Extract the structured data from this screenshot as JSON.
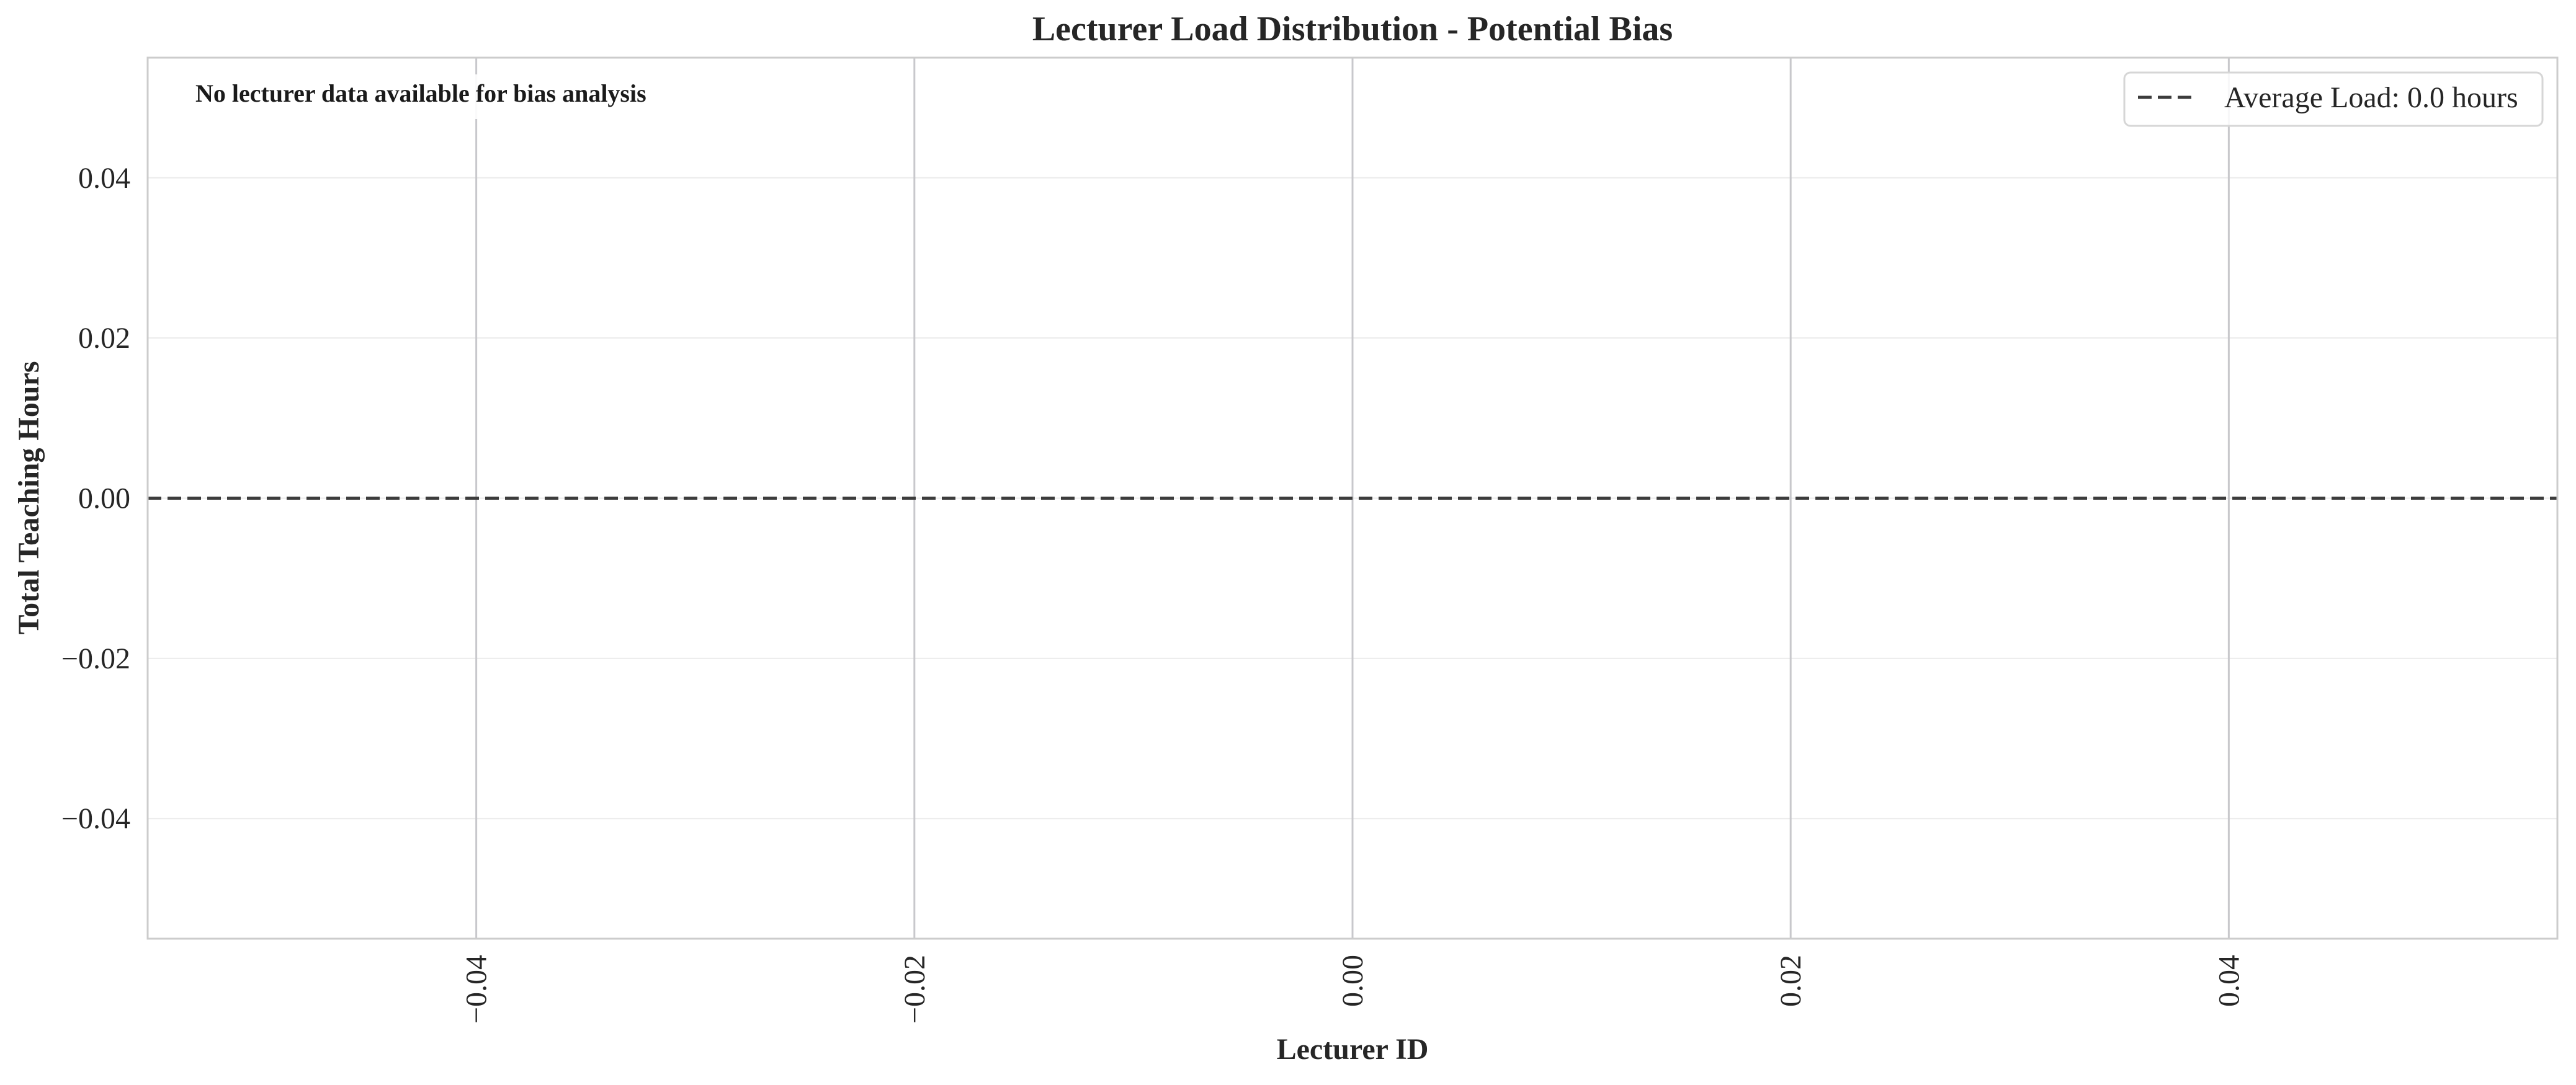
{
  "chart_data": {
    "type": "line",
    "title": "Lecturer Load Distribution - Potential Bias",
    "xlabel": "Lecturer ID",
    "ylabel": "Total Teaching Hours",
    "xlim": [
      -0.055,
      0.055
    ],
    "ylim": [
      -0.055,
      0.055
    ],
    "x_ticks": [
      -0.04,
      -0.02,
      0.0,
      0.02,
      0.04
    ],
    "x_tick_labels": [
      "−0.04",
      "−0.02",
      "0.00",
      "0.02",
      "0.04"
    ],
    "y_ticks": [
      0.04,
      0.02,
      0.0,
      -0.02,
      -0.04
    ],
    "y_tick_labels": [
      "0.04",
      "0.02",
      "0.00",
      "−0.02",
      "−0.04"
    ],
    "x_tick_rotation": "vertical",
    "grid": true,
    "series": [],
    "reference_lines": [
      {
        "orientation": "horizontal",
        "y": 0.0,
        "style": "dashed",
        "color": "#3c3c3c",
        "label": "Average Load: 0.0 hours"
      }
    ],
    "annotation": {
      "text": "No lecturer data available for bias analysis",
      "placement": "top-left"
    },
    "legend": {
      "placement": "top-right",
      "entries": [
        "Average Load: 0.0 hours"
      ]
    },
    "colors": {
      "background": "#ffffff",
      "grid_vertical": "#c8c8cc",
      "grid_horizontal": "#ebebeb",
      "spine": "#cccccc",
      "reference_line": "#3c3c3c",
      "text": "#262626"
    }
  }
}
